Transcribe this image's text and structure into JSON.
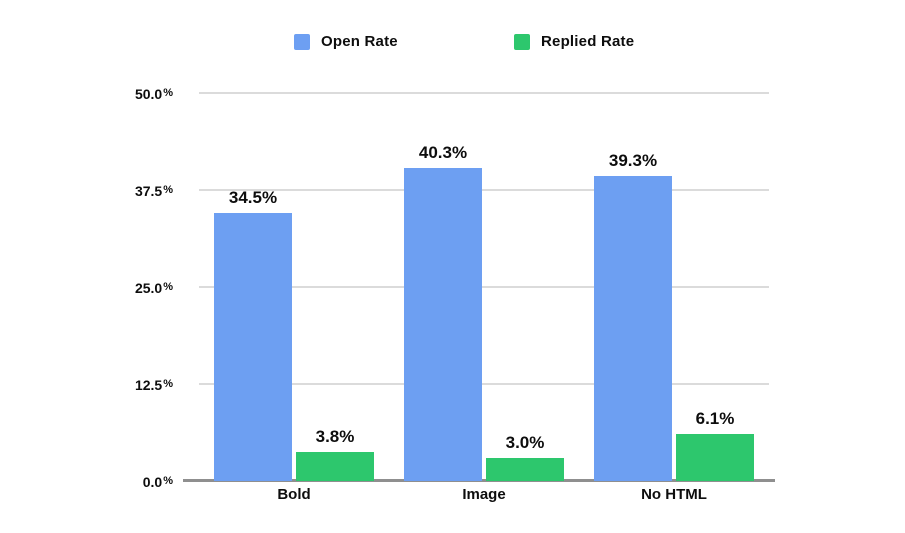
{
  "chart_data": {
    "type": "bar",
    "title": "",
    "xlabel": "",
    "ylabel": "",
    "categories": [
      "Bold",
      "Image",
      "No HTML"
    ],
    "series": [
      {
        "name": "Open Rate",
        "color": "#6D9FF2",
        "values": [
          34.5,
          40.3,
          39.3
        ]
      },
      {
        "name": "Replied Rate",
        "color": "#2DC76D",
        "values": [
          3.8,
          3.0,
          6.1
        ]
      }
    ],
    "ylim": [
      0,
      50
    ],
    "y_ticks": [
      0,
      12.5,
      25,
      37.5,
      50
    ],
    "y_tick_suffix": "%",
    "value_suffix": "%",
    "grid": "horizontal",
    "legend_position": "top"
  },
  "styles": {
    "grid_color": "#DBDBDB",
    "axis_color": "#8F8F8F",
    "label_color": "#0D0D0D",
    "background": "#FFFFFF"
  }
}
